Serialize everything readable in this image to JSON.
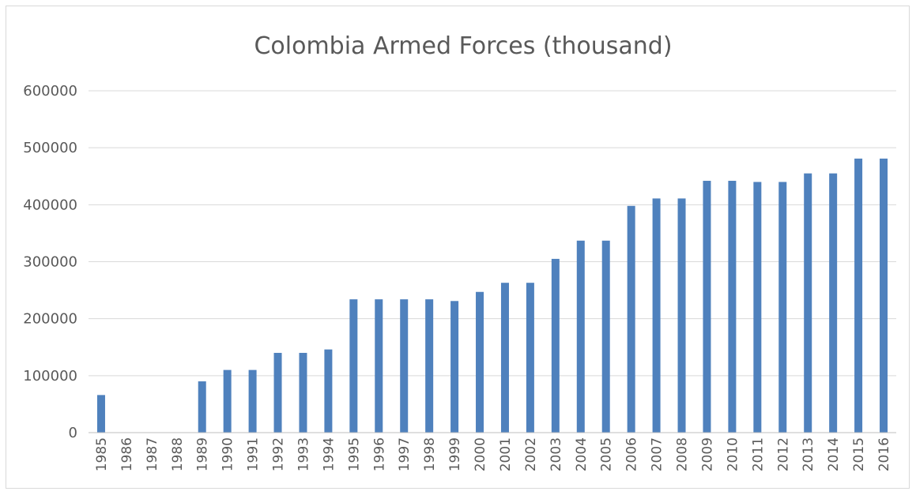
{
  "chart_data": {
    "type": "bar",
    "title": "Colombia Armed Forces (thousand)",
    "xlabel": "",
    "ylabel": "",
    "ylim": [
      0,
      600000
    ],
    "yticks": [
      0,
      100000,
      200000,
      300000,
      400000,
      500000,
      600000
    ],
    "grid": true,
    "legend": "none",
    "bar_color": "#4f81bd",
    "categories": [
      "1985",
      "1986",
      "1987",
      "1988",
      "1989",
      "1990",
      "1991",
      "1992",
      "1993",
      "1994",
      "1995",
      "1996",
      "1997",
      "1998",
      "1999",
      "2000",
      "2001",
      "2002",
      "2003",
      "2004",
      "2005",
      "2006",
      "2007",
      "2008",
      "2009",
      "2010",
      "2011",
      "2012",
      "2013",
      "2014",
      "2015",
      "2016"
    ],
    "values": [
      66000,
      0,
      0,
      0,
      90000,
      110000,
      110000,
      140000,
      140000,
      146000,
      234000,
      234000,
      234000,
      234000,
      231000,
      247000,
      263000,
      263000,
      305000,
      337000,
      337000,
      398000,
      411000,
      411000,
      442000,
      442000,
      440000,
      440000,
      455000,
      455000,
      481000,
      481000
    ]
  }
}
